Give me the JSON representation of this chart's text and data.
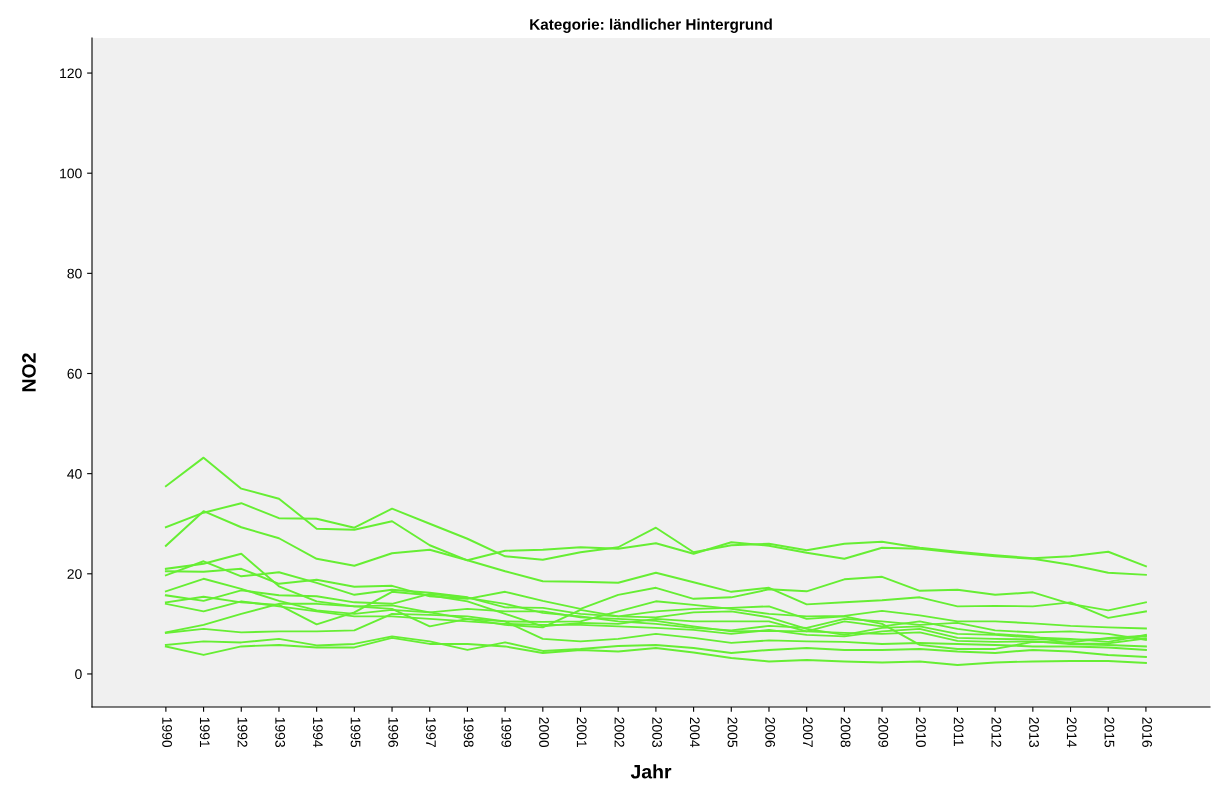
{
  "chart_data": {
    "type": "line",
    "title": "Kategorie: ländlicher Hintergrund",
    "xlabel": "Jahr",
    "ylabel": "NO2",
    "categories": [
      "1990",
      "1991",
      "1992",
      "1993",
      "1994",
      "1995",
      "1996",
      "1997",
      "1998",
      "1999",
      "2000",
      "2001",
      "2002",
      "2003",
      "2004",
      "2005",
      "2006",
      "2007",
      "2008",
      "2009",
      "2010",
      "2011",
      "2012",
      "2013",
      "2014",
      "2015",
      "2016"
    ],
    "ylim": [
      -6.6,
      127
    ],
    "yticks": [
      0,
      20,
      40,
      60,
      80,
      100,
      120
    ],
    "grid": false,
    "marker": "none",
    "line_style": "solid",
    "series": [
      {
        "color": "#66ee33",
        "values": [
          37.5,
          43.2,
          37,
          35,
          29,
          28.8,
          30.5,
          25.7,
          22.7,
          20.5,
          18.5,
          18.4,
          18.2,
          20.2,
          18.3,
          16.4,
          17.2,
          13.9,
          14.3,
          14.7,
          15.3,
          13.5,
          13.6,
          13.5,
          14.3,
          11.2,
          12.5
        ]
      },
      {
        "color": "#66ee33",
        "values": [
          29.3,
          32.2,
          34.1,
          31.1,
          31,
          29.2,
          33,
          30,
          27,
          23.5,
          22.8,
          24.3,
          25.3,
          29.2,
          24.3,
          25.7,
          26,
          24.7,
          26,
          26.4,
          25.2,
          24.4,
          23.7,
          23.1,
          23.5,
          24.4,
          21.5
        ]
      },
      {
        "color": "#66ee33",
        "values": [
          25.6,
          32.5,
          29.3,
          27.1,
          23,
          21.6,
          24.1,
          24.8,
          22.7,
          24.6,
          24.8,
          25.3,
          25,
          26.1,
          24,
          26.3,
          25.6,
          24.2,
          23,
          25.2,
          25,
          24.2,
          23.5,
          23,
          21.8,
          20.2,
          19.8
        ]
      },
      {
        "color": "#66ee33",
        "values": [
          21,
          22,
          24,
          17.5,
          14.5,
          13.5,
          13.7,
          12.3,
          11,
          10.5,
          10.4,
          10.5,
          12.5,
          14.5,
          13.8,
          13,
          12,
          11.5,
          11.6,
          12.6,
          11.7,
          10.5,
          10.5,
          10.1,
          9.6,
          9.3,
          9.1
        ]
      },
      {
        "color": "#66ee33",
        "values": [
          20.5,
          20.4,
          21,
          18,
          18.8,
          17.4,
          17.6,
          15.5,
          15,
          16.4,
          14.6,
          13,
          15.8,
          17.2,
          15,
          15.3,
          16.9,
          16.5,
          18.9,
          19.4,
          16.6,
          16.8,
          15.8,
          16.3,
          14,
          12.7,
          14.3
        ]
      },
      {
        "color": "#66ee33",
        "values": [
          19.7,
          22.5,
          19.5,
          20.3,
          18.2,
          15.8,
          16.8,
          16.2,
          15.3,
          13.3,
          13.2,
          12,
          11.5,
          11.3,
          12.3,
          12.5,
          11.3,
          9,
          7.8,
          9.2,
          9.5,
          8,
          7.8,
          7.3,
          7,
          6.4,
          7.8
        ]
      },
      {
        "color": "#66ee33",
        "values": [
          16.5,
          19,
          17,
          14.6,
          12.7,
          12,
          12.8,
          12.3,
          13,
          12.5,
          12.5,
          11.3,
          11,
          10.6,
          9.5,
          8.5,
          8.6,
          8.5,
          8.2,
          8,
          8.3,
          6.6,
          6.4,
          6.5,
          6,
          6.1,
          7.1
        ]
      },
      {
        "color": "#66ee33",
        "values": [
          15.7,
          14.6,
          16.7,
          15.7,
          15.5,
          14.3,
          14,
          16,
          15.2,
          14,
          12.2,
          11.5,
          10.5,
          10,
          9.2,
          8.7,
          9.6,
          9.2,
          11,
          10.5,
          9.8,
          10.2,
          8.7,
          8.3,
          8.5,
          8,
          6.8
        ]
      },
      {
        "color": "#66ee33",
        "values": [
          14,
          12.5,
          14.5,
          13.5,
          12.5,
          11.5,
          11.5,
          11,
          10.5,
          10,
          9.8,
          9.8,
          9.5,
          9.2,
          8.8,
          8,
          8.8,
          7.8,
          7.5,
          8.5,
          9,
          7.2,
          7,
          6.9,
          6.8,
          7,
          7.5
        ]
      },
      {
        "color": "#66ee33",
        "values": [
          14.3,
          15.4,
          14.3,
          13.8,
          9.9,
          12.3,
          16.4,
          15.7,
          14.5,
          12,
          9.5,
          10.2,
          10,
          11,
          10.5,
          10.5,
          10.5,
          8.5,
          10.5,
          9.5,
          10.5,
          9,
          8,
          7.5,
          6,
          5.8,
          5.5
        ]
      },
      {
        "color": "#66ee33",
        "values": [
          8.3,
          9.8,
          12,
          14,
          14,
          13.5,
          13,
          9.5,
          11,
          9.8,
          9.3,
          12.8,
          11.5,
          12.5,
          13,
          13.2,
          13.5,
          11,
          11.5,
          10,
          5.8,
          5,
          5,
          6.4,
          6.3,
          7.2,
          7.6
        ]
      },
      {
        "color": "#66ee33",
        "values": [
          8.2,
          9,
          8.3,
          8.5,
          8.5,
          8.7,
          12,
          11.8,
          11.5,
          10.5,
          7,
          6.5,
          7,
          8,
          7.2,
          6.2,
          6.7,
          6.5,
          6.4,
          6,
          6.2,
          6,
          5.8,
          5.5,
          5.5,
          5.3,
          4.8
        ]
      },
      {
        "color": "#66ee33",
        "values": [
          5.8,
          6.5,
          6.3,
          7,
          5.7,
          6,
          7.5,
          6.5,
          4.8,
          6.3,
          4.6,
          5,
          5.6,
          5.8,
          5.2,
          4.2,
          4.8,
          5.2,
          4.8,
          4.8,
          5,
          4.5,
          4.2,
          4.8,
          4.5,
          3.8,
          3.4
        ]
      },
      {
        "color": "#66ee33",
        "values": [
          5.5,
          3.8,
          5.5,
          5.8,
          5.3,
          5.3,
          7.2,
          6,
          6,
          5.5,
          4.2,
          4.8,
          4.5,
          5.2,
          4.3,
          3.2,
          2.5,
          2.8,
          2.5,
          2.3,
          2.5,
          1.8,
          2.3,
          2.5,
          2.6,
          2.6,
          2.2
        ]
      }
    ]
  }
}
